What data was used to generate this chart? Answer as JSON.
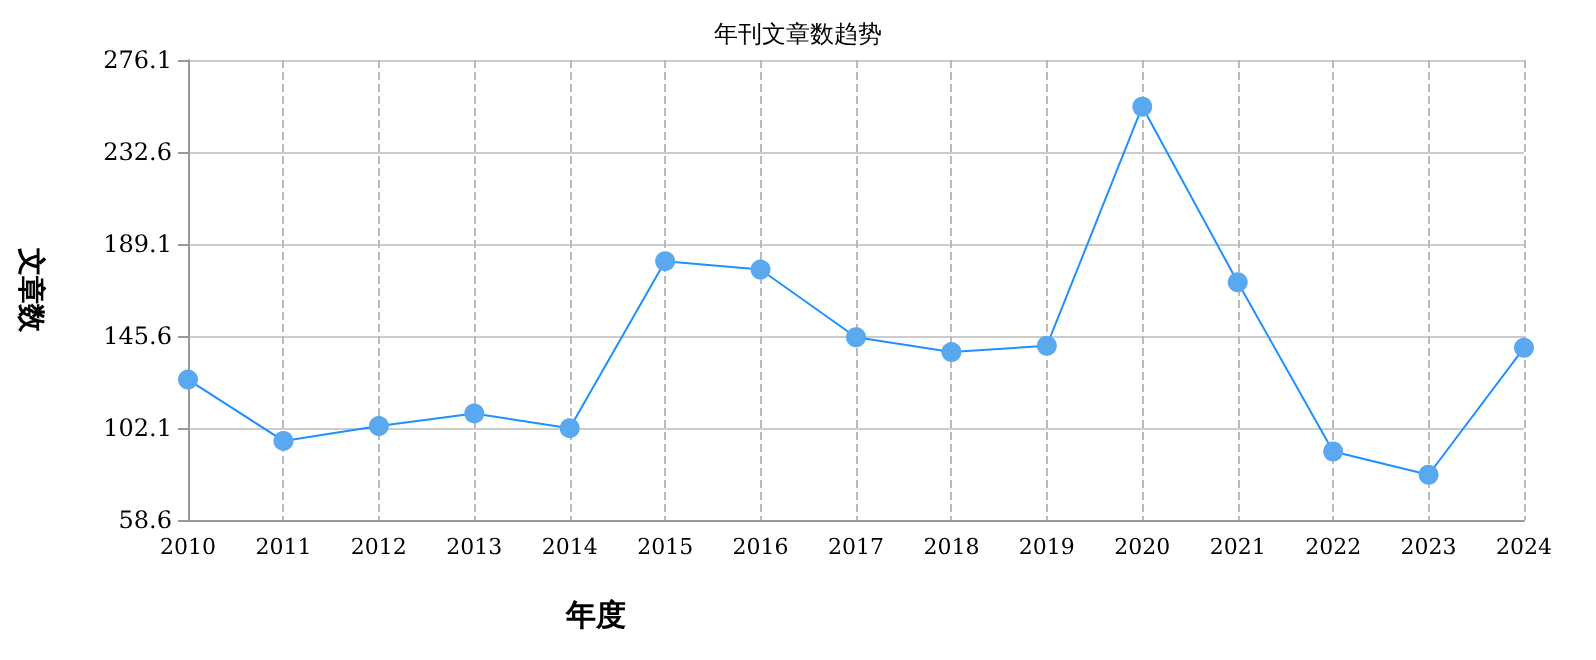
{
  "chart_data": {
    "type": "line",
    "title": "年刊文章数趋势",
    "xlabel": "年度",
    "ylabel": "文章数",
    "categories": [
      "2010",
      "2011",
      "2012",
      "2013",
      "2014",
      "2015",
      "2016",
      "2017",
      "2018",
      "2019",
      "2020",
      "2021",
      "2022",
      "2023",
      "2024"
    ],
    "series": [
      {
        "color": "#1e90ff",
        "values": [
          125,
          96,
          103,
          109,
          102,
          181,
          177,
          145,
          138,
          141,
          254,
          171,
          91,
          80,
          140
        ]
      }
    ],
    "ylim": [
      58.6,
      276.1
    ],
    "yticks": [
      58.6,
      102.1,
      145.6,
      189.1,
      232.6,
      276.1
    ],
    "grid": true,
    "marker": "circle"
  }
}
